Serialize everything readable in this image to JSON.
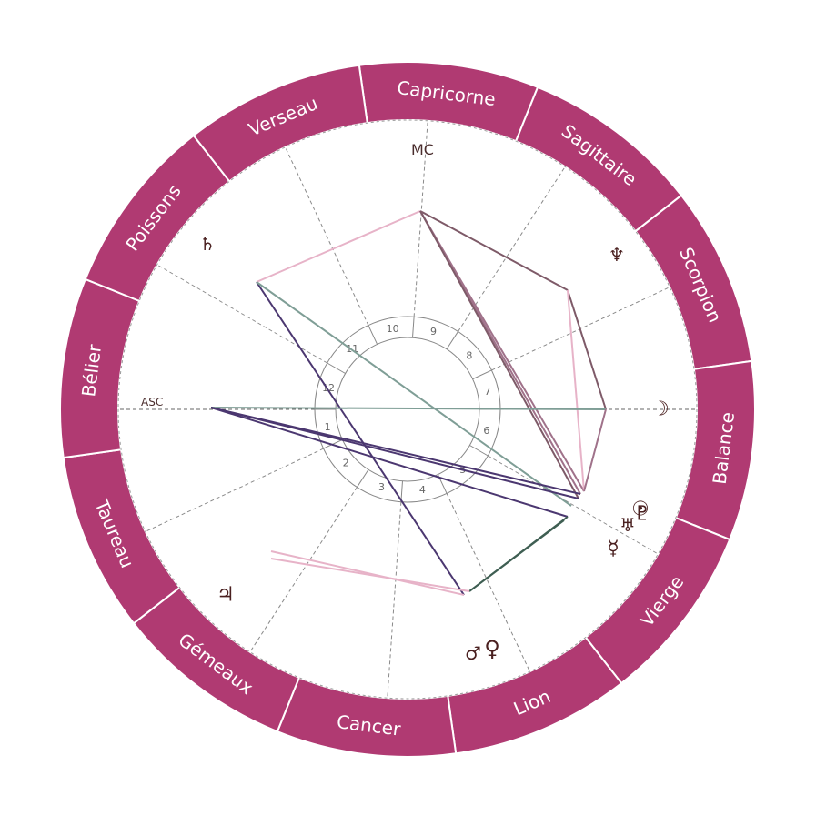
{
  "zodiac": {
    "signs": [
      "Capricorne",
      "Sagittaire",
      "Scorpion",
      "Balance",
      "Vierge",
      "Lion",
      "Cancer",
      "Gémeaux",
      "Taureau",
      "Bélier",
      "Poissons",
      "Verseau"
    ],
    "ring_color": "#b03a72"
  },
  "axes": {
    "asc": "ASC",
    "mc": "MC"
  },
  "houses": [
    "1",
    "2",
    "3",
    "4",
    "5",
    "6",
    "7",
    "8",
    "9",
    "10",
    "11",
    "12"
  ],
  "planets": [
    {
      "name": "saturn",
      "glyph": "♄"
    },
    {
      "name": "neptune",
      "glyph": "♆"
    },
    {
      "name": "moon",
      "glyph": "☽"
    },
    {
      "name": "pluto",
      "glyph": "♇"
    },
    {
      "name": "uranus",
      "glyph": "♅"
    },
    {
      "name": "sun",
      "glyph": "☉"
    },
    {
      "name": "mercury",
      "glyph": "☿"
    },
    {
      "name": "venus",
      "glyph": "♀"
    },
    {
      "name": "mars",
      "glyph": "♂"
    },
    {
      "name": "jupiter",
      "glyph": "♃"
    }
  ],
  "aspect_colors": {
    "pink": "#e7b3c8",
    "mauve": "#a0728a",
    "plum": "#7e5a68",
    "violet": "#4b3770",
    "sage": "#7f9e96",
    "dark_green": "#3e5e52"
  }
}
